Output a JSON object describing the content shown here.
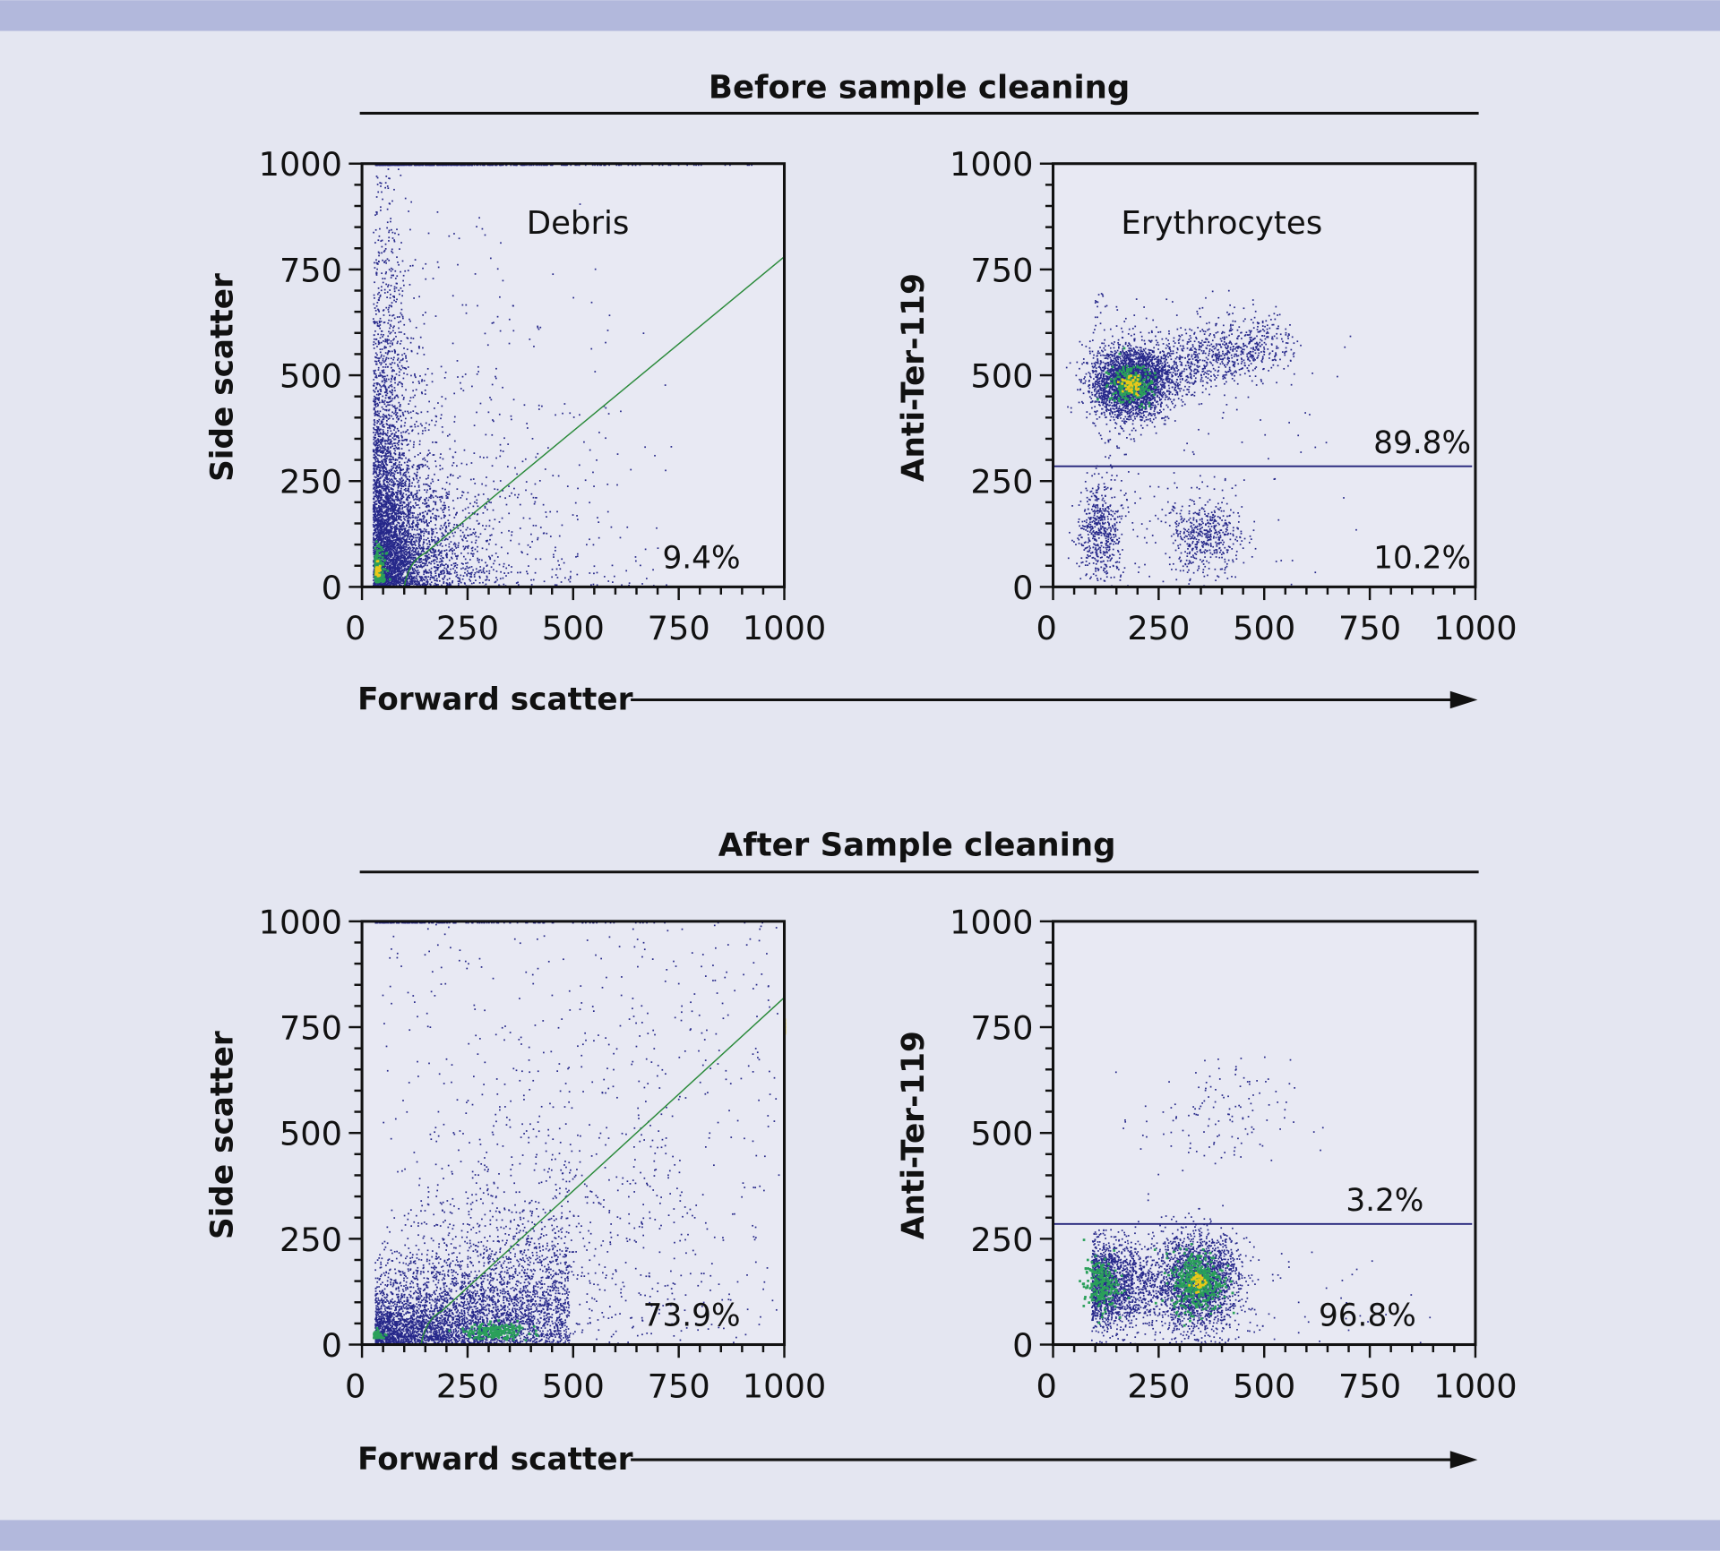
{
  "colors": {
    "background": "#e4e6f1",
    "band": "#b2b8dc",
    "dots": "#26288a",
    "gate_diagonal": "#2a8a3a",
    "gate_horizontal": "#22227a"
  },
  "sections": [
    {
      "title": "Before sample cleaning",
      "x_arrow_label": "Forward scatter"
    },
    {
      "title": "After Sample cleaning",
      "x_arrow_label": "Forward scatter"
    }
  ],
  "chart_data": [
    {
      "type": "scatter",
      "section": "Before sample cleaning",
      "ylabel": "Side scatter",
      "xlabel": "Forward scatter",
      "xlim": [
        0,
        1000
      ],
      "ylim": [
        0,
        1000
      ],
      "xticks": [
        "0",
        "250",
        "500",
        "750",
        "1000"
      ],
      "yticks": [
        "0",
        "250",
        "500",
        "750",
        "1000"
      ],
      "annotation": "Debris",
      "gate": "diagonal",
      "gate_percent": "9.4%"
    },
    {
      "type": "scatter",
      "section": "Before sample cleaning",
      "ylabel": "Anti-Ter-119",
      "xlabel": "Forward scatter",
      "xlim": [
        0,
        1000
      ],
      "ylim": [
        0,
        1000
      ],
      "xticks": [
        "0",
        "250",
        "500",
        "750",
        "1000"
      ],
      "yticks": [
        "0",
        "250",
        "500",
        "750",
        "1000"
      ],
      "annotation": "Erythrocytes",
      "gate": "horizontal",
      "gate_y": 285,
      "gate_percent_above": "89.8%",
      "gate_percent_below": "10.2%"
    },
    {
      "type": "scatter",
      "section": "After Sample cleaning",
      "ylabel": "Side scatter",
      "xlabel": "Forward scatter",
      "xlim": [
        0,
        1000
      ],
      "ylim": [
        0,
        1000
      ],
      "xticks": [
        "0",
        "250",
        "500",
        "750",
        "1000"
      ],
      "yticks": [
        "0",
        "250",
        "500",
        "750",
        "1000"
      ],
      "gate": "diagonal",
      "gate_percent": "73.9%"
    },
    {
      "type": "scatter",
      "section": "After Sample cleaning",
      "ylabel": "Anti-Ter-119",
      "xlabel": "Forward scatter",
      "xlim": [
        0,
        1000
      ],
      "ylim": [
        0,
        1000
      ],
      "xticks": [
        "0",
        "250",
        "500",
        "750",
        "1000"
      ],
      "yticks": [
        "0",
        "250",
        "500",
        "750",
        "1000"
      ],
      "gate": "horizontal",
      "gate_y": 285,
      "gate_percent_above": "3.2%",
      "gate_percent_below": "96.8%"
    }
  ]
}
